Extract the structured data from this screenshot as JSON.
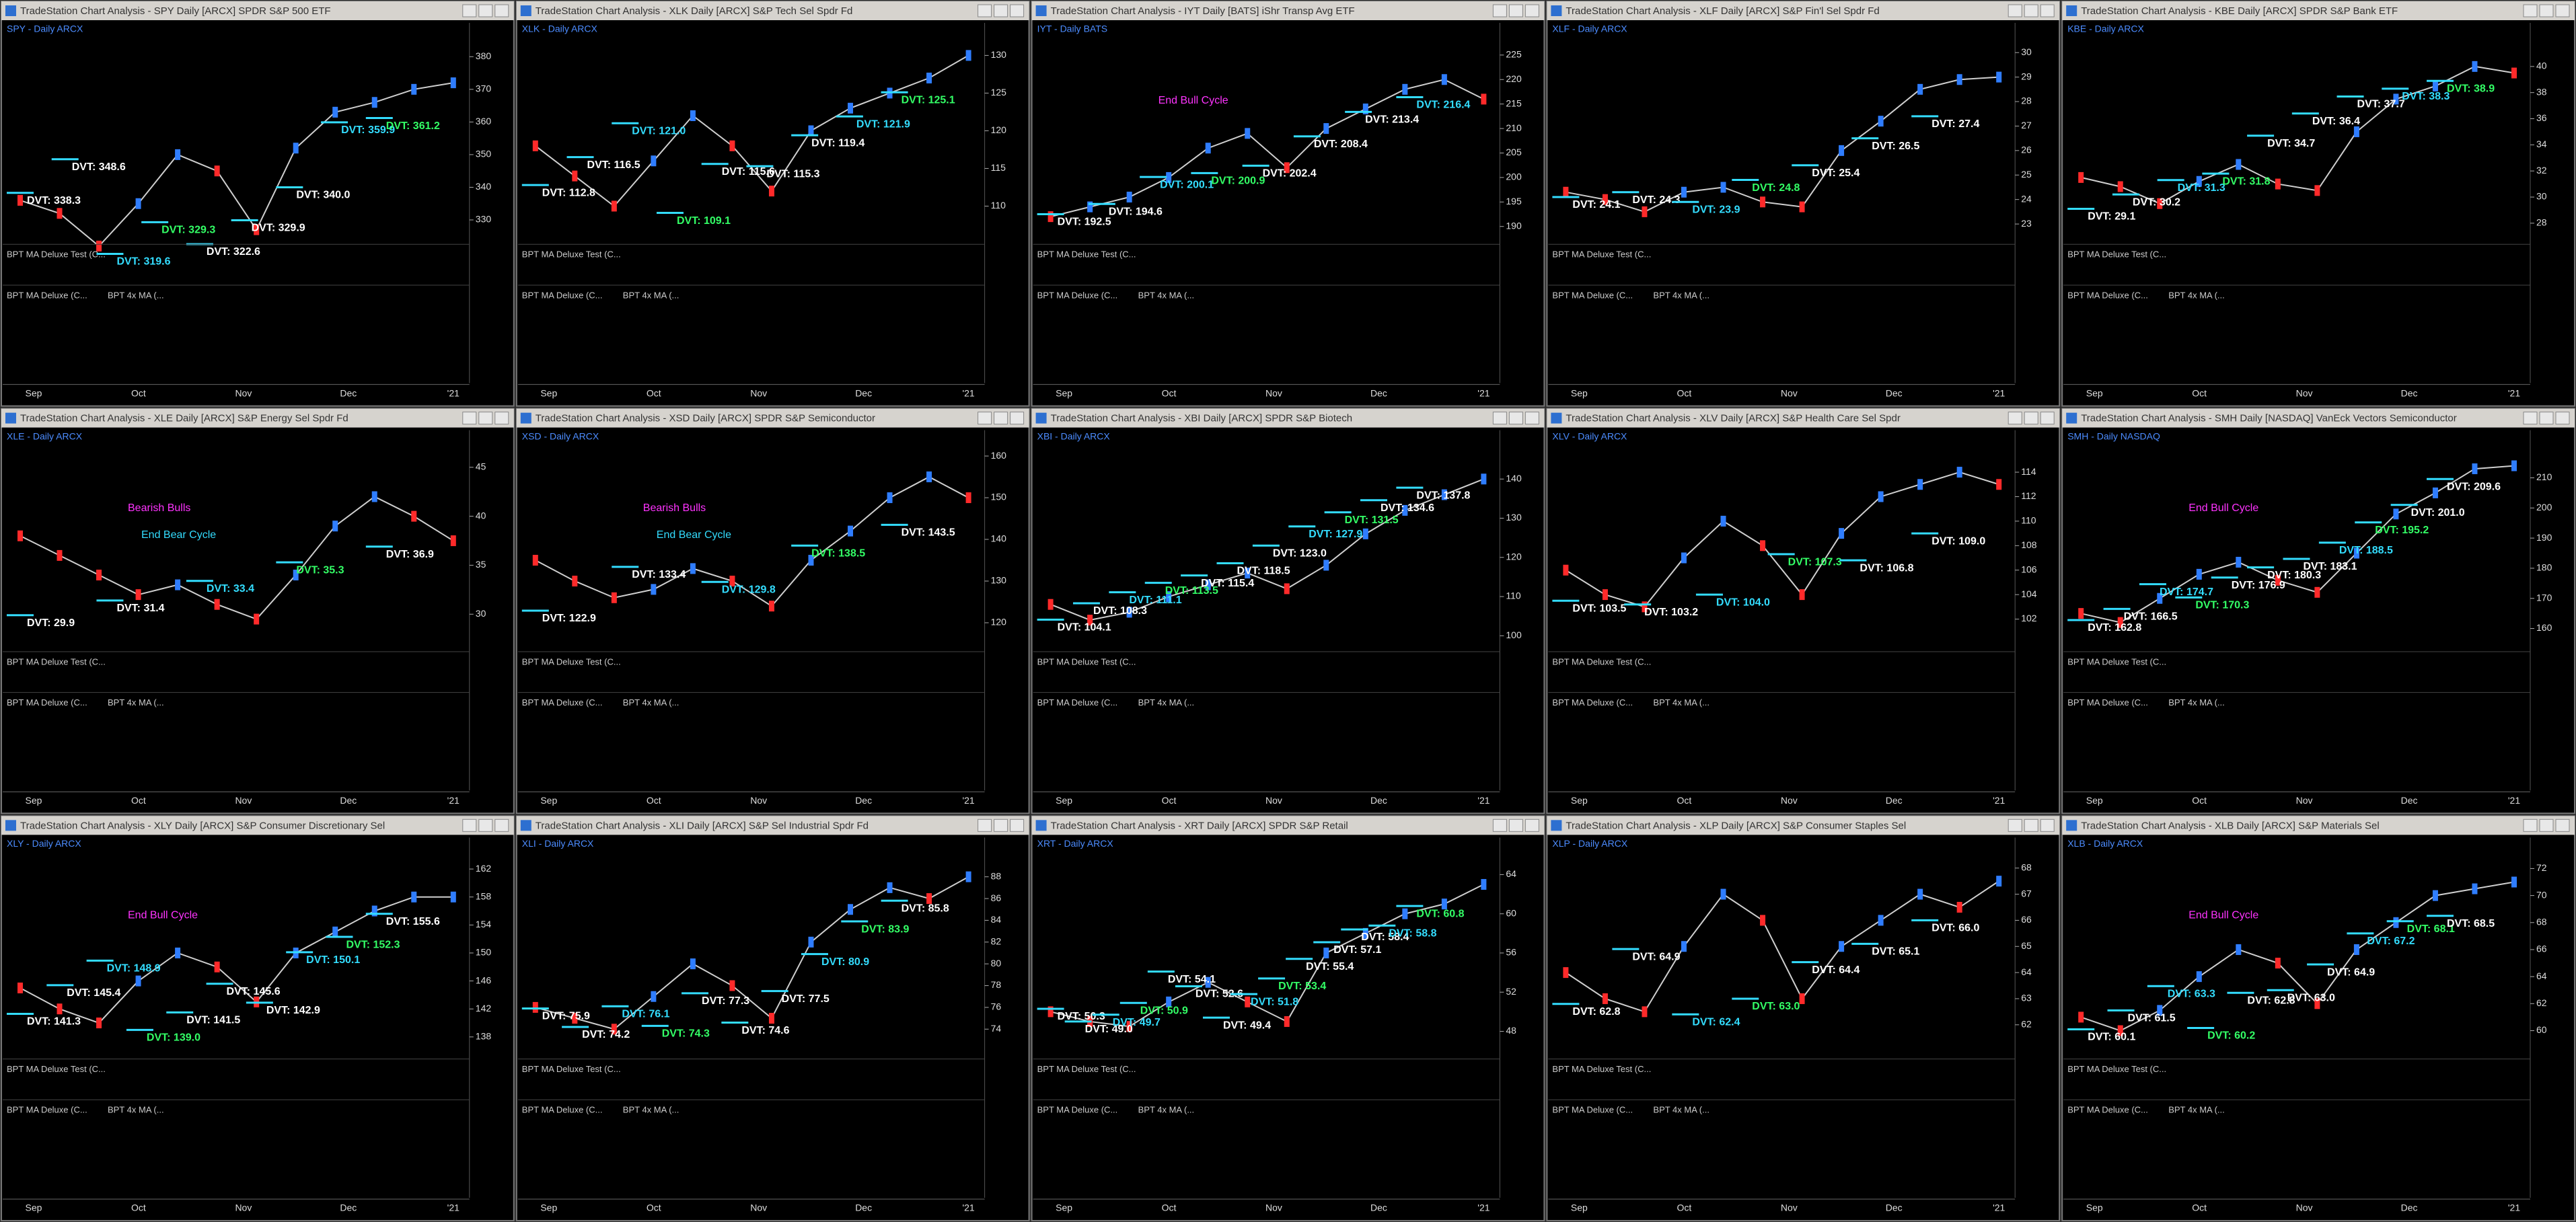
{
  "indicators": [
    "BPT MA Deluxe Test (C...",
    "BPT MA Deluxe (C...",
    "BPT 4x MA (..."
  ],
  "months": [
    "Sep",
    "Oct",
    "Nov",
    "Dec",
    "'21"
  ],
  "panels": [
    {
      "title": "TradeStation Chart Analysis - SPY Daily [ARCX] SPDR S&P 500 ETF",
      "symbol": "SPY - Daily ARCX",
      "ylim": [
        325,
        385
      ],
      "yticks": [
        330,
        340,
        350,
        360,
        370,
        380
      ],
      "prices": [
        336,
        332,
        322,
        335,
        350,
        345,
        327,
        352,
        363,
        366,
        370,
        372
      ],
      "dvt": [
        {
          "value": 338.3,
          "label": "DVT: 338.3"
        },
        {
          "value": 348.6,
          "label": "DVT: 348.6"
        },
        {
          "value": 319.6,
          "label": "DVT: 319.6"
        },
        {
          "value": 329.3,
          "label": "DVT: 329.3"
        },
        {
          "value": 322.6,
          "label": "DVT: 322.6"
        },
        {
          "value": 329.9,
          "label": "DVT: 329.9"
        },
        {
          "value": 340.0,
          "label": "DVT: 340.0"
        },
        {
          "value": 359.9,
          "label": "DVT: 359.9"
        },
        {
          "value": 361.2,
          "label": "DVT: 361.2"
        }
      ],
      "notes": []
    },
    {
      "title": "TradeStation Chart Analysis - XLK Daily [ARCX] S&P Tech Sel Spdr Fd",
      "symbol": "XLK - Daily ARCX",
      "ylim": [
        106,
        132
      ],
      "yticks": [
        110,
        115,
        120,
        125,
        130
      ],
      "prices": [
        118,
        114,
        110,
        116,
        122,
        118,
        112,
        120,
        123,
        125,
        127,
        130
      ],
      "dvt": [
        {
          "value": 112.8,
          "label": "DVT: 112.8"
        },
        {
          "value": 116.5,
          "label": "DVT: 116.5"
        },
        {
          "value": 121.0,
          "label": "DVT: 121.0"
        },
        {
          "value": 109.1,
          "label": "DVT: 109.1"
        },
        {
          "value": 115.6,
          "label": "DVT: 115.6"
        },
        {
          "value": 115.3,
          "label": "DVT: 115.3"
        },
        {
          "value": 119.4,
          "label": "DVT: 119.4"
        },
        {
          "value": 121.9,
          "label": "DVT: 121.9"
        },
        {
          "value": 125.1,
          "label": "DVT: 125.1"
        }
      ],
      "notes": []
    },
    {
      "title": "TradeStation Chart Analysis - IYT Daily [BATS] iShr Transp Avg ETF",
      "symbol": "IYT - Daily BATS",
      "ylim": [
        188,
        228
      ],
      "yticks": [
        190,
        195,
        200,
        205,
        210,
        215,
        220,
        225
      ],
      "prices": [
        192,
        194,
        196,
        200,
        206,
        209,
        202,
        210,
        214,
        218,
        220,
        216
      ],
      "dvt": [
        {
          "value": 192.5,
          "label": "DVT: 192.5"
        },
        {
          "value": 194.6,
          "label": "DVT: 194.6"
        },
        {
          "value": 200.1,
          "label": "DVT: 200.1"
        },
        {
          "value": 200.9,
          "label": "DVT: 200.9"
        },
        {
          "value": 202.4,
          "label": "DVT: 202.4"
        },
        {
          "value": 208.4,
          "label": "DVT: 208.4"
        },
        {
          "value": 213.4,
          "label": "DVT: 213.4"
        },
        {
          "value": 216.4,
          "label": "DVT: 216.4"
        }
      ],
      "notes": [
        {
          "text": "End Bull Cycle",
          "color": "#ff33ff"
        }
      ]
    },
    {
      "title": "TradeStation Chart Analysis - XLF Daily [ARCX] S&P Fin'l Sel Spdr Fd",
      "symbol": "XLF - Daily ARCX",
      "ylim": [
        22.5,
        30.5
      ],
      "yticks": [
        23,
        24,
        25,
        26,
        27,
        28,
        29,
        30
      ],
      "prices": [
        24.3,
        24.0,
        23.5,
        24.3,
        24.5,
        23.9,
        23.7,
        26.0,
        27.2,
        28.5,
        28.9,
        29.0
      ],
      "dvt": [
        {
          "value": 24.1,
          "label": "DVT: 24.1"
        },
        {
          "value": 24.3,
          "label": "DVT: 24.3"
        },
        {
          "value": 23.9,
          "label": "DVT: 23.9"
        },
        {
          "value": 24.8,
          "label": "DVT: 24.8"
        },
        {
          "value": 25.4,
          "label": "DVT: 25.4"
        },
        {
          "value": 26.5,
          "label": "DVT: 26.5"
        },
        {
          "value": 27.4,
          "label": "DVT: 27.4"
        }
      ],
      "notes": []
    },
    {
      "title": "TradeStation Chart Analysis - KBE Daily [ARCX] SPDR S&P Bank ETF",
      "symbol": "KBE - Daily ARCX",
      "ylim": [
        27,
        42
      ],
      "yticks": [
        28,
        30,
        32,
        34,
        36,
        38,
        40
      ],
      "prices": [
        31.5,
        30.8,
        29.5,
        31.2,
        32.5,
        31.0,
        30.5,
        35.0,
        37.5,
        38.5,
        40.0,
        39.5
      ],
      "dvt": [
        {
          "value": 29.1,
          "label": "DVT: 29.1"
        },
        {
          "value": 30.2,
          "label": "DVT: 30.2"
        },
        {
          "value": 31.3,
          "label": "DVT: 31.3"
        },
        {
          "value": 31.8,
          "label": "DVT: 31.8"
        },
        {
          "value": 34.7,
          "label": "DVT: 34.7"
        },
        {
          "value": 36.4,
          "label": "DVT: 36.4"
        },
        {
          "value": 37.7,
          "label": "DVT: 37.7"
        },
        {
          "value": 38.3,
          "label": "DVT: 38.3"
        },
        {
          "value": 38.9,
          "label": "DVT: 38.9"
        }
      ],
      "notes": []
    },
    {
      "title": "TradeStation Chart Analysis - XLE Daily [ARCX] S&P Energy Sel Spdr Fd",
      "symbol": "XLE - Daily ARCX",
      "ylim": [
        27,
        47
      ],
      "yticks": [
        30,
        35,
        40,
        45
      ],
      "prices": [
        38,
        36,
        34,
        32,
        33,
        31,
        29.5,
        34,
        39,
        42,
        40,
        37.5
      ],
      "dvt": [
        {
          "value": 29.9,
          "label": "DVT: 29.9"
        },
        {
          "value": 31.4,
          "label": "DVT: 31.4"
        },
        {
          "value": 33.4,
          "label": "DVT: 33.4"
        },
        {
          "value": 35.3,
          "label": "DVT: 35.3"
        },
        {
          "value": 36.9,
          "label": "DVT: 36.9"
        }
      ],
      "notes": [
        {
          "text": "Bearish Bulls",
          "color": "#ff33ff"
        },
        {
          "text": "End Bear Cycle",
          "color": "#33ddff"
        }
      ]
    },
    {
      "title": "TradeStation Chart Analysis - XSD Daily [ARCX] SPDR S&P Semiconductor",
      "symbol": "XSD - Daily ARCX",
      "ylim": [
        115,
        162
      ],
      "yticks": [
        120,
        130,
        140,
        150,
        160
      ],
      "prices": [
        135,
        130,
        126,
        128,
        133,
        130,
        124,
        135,
        142,
        150,
        155,
        150
      ],
      "dvt": [
        {
          "value": 122.9,
          "label": "DVT: 122.9"
        },
        {
          "value": 133.4,
          "label": "DVT: 133.4"
        },
        {
          "value": 129.8,
          "label": "DVT: 129.8"
        },
        {
          "value": 138.5,
          "label": "DVT: 138.5"
        },
        {
          "value": 143.5,
          "label": "DVT: 143.5"
        }
      ],
      "notes": [
        {
          "text": "Bearish Bulls",
          "color": "#ff33ff"
        },
        {
          "text": "End Bear Cycle",
          "color": "#33ddff"
        }
      ]
    },
    {
      "title": "TradeStation Chart Analysis - XBI Daily [ARCX] SPDR S&P Biotech",
      "symbol": "XBI - Daily ARCX",
      "ylim": [
        98,
        148
      ],
      "yticks": [
        100,
        110,
        120,
        130,
        140
      ],
      "prices": [
        108,
        104,
        106,
        110,
        113,
        116,
        112,
        118,
        126,
        132,
        136,
        140
      ],
      "dvt": [
        {
          "value": 104.1,
          "label": "DVT: 104.1"
        },
        {
          "value": 108.3,
          "label": "DVT: 108.3"
        },
        {
          "value": 111.1,
          "label": "DVT: 111.1"
        },
        {
          "value": 113.5,
          "label": "DVT: 113.5"
        },
        {
          "value": 115.4,
          "label": "DVT: 115.4"
        },
        {
          "value": 118.5,
          "label": "DVT: 118.5"
        },
        {
          "value": 123.0,
          "label": "DVT: 123.0"
        },
        {
          "value": 127.9,
          "label": "DVT: 127.9"
        },
        {
          "value": 131.5,
          "label": "DVT: 131.5"
        },
        {
          "value": 134.6,
          "label": "DVT: 134.6"
        },
        {
          "value": 137.8,
          "label": "DVT: 137.8"
        }
      ],
      "notes": []
    },
    {
      "title": "TradeStation Chart Analysis - XLV Daily [ARCX] S&P Health Care Sel Spdr",
      "symbol": "XLV - Daily ARCX",
      "ylim": [
        100,
        116
      ],
      "yticks": [
        102,
        104,
        106,
        108,
        110,
        112,
        114
      ],
      "prices": [
        106,
        104,
        103,
        107,
        110,
        108,
        104,
        109,
        112,
        113,
        114,
        113
      ],
      "dvt": [
        {
          "value": 103.5,
          "label": "DVT: 103.5"
        },
        {
          "value": 103.2,
          "label": "DVT: 103.2"
        },
        {
          "value": 104.0,
          "label": "DVT: 104.0"
        },
        {
          "value": 107.3,
          "label": "DVT: 107.3"
        },
        {
          "value": 106.8,
          "label": "DVT: 106.8"
        },
        {
          "value": 109.0,
          "label": "DVT: 109.0"
        }
      ],
      "notes": []
    },
    {
      "title": "TradeStation Chart Analysis - SMH Daily [NASDAQ] VanEck Vectors Semiconductor",
      "symbol": "SMH - Daily NASDAQ",
      "ylim": [
        155,
        220
      ],
      "yticks": [
        160,
        170,
        180,
        190,
        200,
        210
      ],
      "prices": [
        165,
        162,
        170,
        178,
        182,
        176,
        172,
        185,
        198,
        205,
        213,
        214
      ],
      "dvt": [
        {
          "value": 162.8,
          "label": "DVT: 162.8"
        },
        {
          "value": 166.5,
          "label": "DVT: 166.5"
        },
        {
          "value": 174.7,
          "label": "DVT: 174.7"
        },
        {
          "value": 170.3,
          "label": "DVT: 170.3"
        },
        {
          "value": 176.9,
          "label": "DVT: 176.9"
        },
        {
          "value": 180.3,
          "label": "DVT: 180.3"
        },
        {
          "value": 183.1,
          "label": "DVT: 183.1"
        },
        {
          "value": 188.5,
          "label": "DVT: 188.5"
        },
        {
          "value": 195.2,
          "label": "DVT: 195.2"
        },
        {
          "value": 201.0,
          "label": "DVT: 201.0"
        },
        {
          "value": 209.6,
          "label": "DVT: 209.6"
        }
      ],
      "notes": [
        {
          "text": "End Bull Cycle",
          "color": "#ff33ff"
        }
      ]
    },
    {
      "title": "TradeStation Chart Analysis - XLY Daily [ARCX] S&P Consumer Discretionary Sel",
      "symbol": "XLY - Daily ARCX",
      "ylim": [
        136,
        164
      ],
      "yticks": [
        138,
        142,
        146,
        150,
        154,
        158,
        162
      ],
      "prices": [
        145,
        142,
        140,
        146,
        150,
        148,
        143,
        150,
        153,
        156,
        158,
        158
      ],
      "dvt": [
        {
          "value": 141.3,
          "label": "DVT: 141.3"
        },
        {
          "value": 145.4,
          "label": "DVT: 145.4"
        },
        {
          "value": 148.9,
          "label": "DVT: 148.9"
        },
        {
          "value": 139.0,
          "label": "DVT: 139.0"
        },
        {
          "value": 141.5,
          "label": "DVT: 141.5"
        },
        {
          "value": 145.6,
          "label": "DVT: 145.6"
        },
        {
          "value": 142.9,
          "label": "DVT: 142.9"
        },
        {
          "value": 150.1,
          "label": "DVT: 150.1"
        },
        {
          "value": 152.3,
          "label": "DVT: 152.3"
        },
        {
          "value": 155.6,
          "label": "DVT: 155.6"
        }
      ],
      "notes": [
        {
          "text": "End Bull Cycle",
          "color": "#ff33ff"
        }
      ]
    },
    {
      "title": "TradeStation Chart Analysis - XLI Daily [ARCX] S&P Sel Industrial Spdr Fd",
      "symbol": "XLI - Daily ARCX",
      "ylim": [
        72,
        90
      ],
      "yticks": [
        74,
        76,
        78,
        80,
        82,
        84,
        86,
        88
      ],
      "prices": [
        76,
        75,
        74,
        77,
        80,
        78,
        75,
        82,
        85,
        87,
        86,
        88
      ],
      "dvt": [
        {
          "value": 75.9,
          "label": "DVT: 75.9"
        },
        {
          "value": 74.2,
          "label": "DVT: 74.2"
        },
        {
          "value": 76.1,
          "label": "DVT: 76.1"
        },
        {
          "value": 74.3,
          "label": "DVT: 74.3"
        },
        {
          "value": 77.3,
          "label": "DVT: 77.3"
        },
        {
          "value": 74.6,
          "label": "DVT: 74.6"
        },
        {
          "value": 77.5,
          "label": "DVT: 77.5"
        },
        {
          "value": 80.9,
          "label": "DVT: 80.9"
        },
        {
          "value": 83.9,
          "label": "DVT: 83.9"
        },
        {
          "value": 85.8,
          "label": "DVT: 85.8"
        }
      ],
      "notes": []
    },
    {
      "title": "TradeStation Chart Analysis - XRT Daily [ARCX] SPDR S&P Retail",
      "symbol": "XRT - Daily ARCX",
      "ylim": [
        46,
        66
      ],
      "yticks": [
        48,
        52,
        56,
        60,
        64
      ],
      "prices": [
        50,
        49,
        48.5,
        51,
        53,
        51,
        49,
        56,
        58,
        60,
        61,
        63
      ],
      "dvt": [
        {
          "value": 50.3,
          "label": "DVT: 50.3"
        },
        {
          "value": 49.0,
          "label": "DVT: 49.0"
        },
        {
          "value": 49.7,
          "label": "DVT: 49.7"
        },
        {
          "value": 50.9,
          "label": "DVT: 50.9"
        },
        {
          "value": 54.1,
          "label": "DVT: 54.1"
        },
        {
          "value": 52.6,
          "label": "DVT: 52.6"
        },
        {
          "value": 49.4,
          "label": "DVT: 49.4"
        },
        {
          "value": 51.8,
          "label": "DVT: 51.8"
        },
        {
          "value": 53.4,
          "label": "DVT: 53.4"
        },
        {
          "value": 55.4,
          "label": "DVT: 55.4"
        },
        {
          "value": 57.1,
          "label": "DVT: 57.1"
        },
        {
          "value": 58.4,
          "label": "DVT: 58.4"
        },
        {
          "value": 58.8,
          "label": "DVT: 58.8"
        },
        {
          "value": 60.8,
          "label": "DVT: 60.8"
        }
      ],
      "notes": []
    },
    {
      "title": "TradeStation Chart Analysis - XLP Daily [ARCX] S&P Consumer Staples Sel",
      "symbol": "XLP - Daily ARCX",
      "ylim": [
        61,
        68.5
      ],
      "yticks": [
        62,
        63,
        64,
        65,
        66,
        67,
        68
      ],
      "prices": [
        64,
        63,
        62.5,
        65,
        67,
        66,
        63,
        65,
        66,
        67,
        66.5,
        67.5
      ],
      "dvt": [
        {
          "value": 62.8,
          "label": "DVT: 62.8"
        },
        {
          "value": 64.9,
          "label": "DVT: 64.9"
        },
        {
          "value": 62.4,
          "label": "DVT: 62.4"
        },
        {
          "value": 63.0,
          "label": "DVT: 63.0"
        },
        {
          "value": 64.4,
          "label": "DVT: 64.4"
        },
        {
          "value": 65.1,
          "label": "DVT: 65.1"
        },
        {
          "value": 66.0,
          "label": "DVT: 66.0"
        }
      ],
      "notes": []
    },
    {
      "title": "TradeStation Chart Analysis - XLB Daily [ARCX] S&P Materials Sel",
      "symbol": "XLB - Daily ARCX",
      "ylim": [
        58.5,
        73
      ],
      "yticks": [
        60,
        62,
        64,
        66,
        68,
        70,
        72
      ],
      "prices": [
        61,
        60,
        61.5,
        64,
        66,
        65,
        62,
        66,
        68,
        70,
        70.5,
        71
      ],
      "dvt": [
        {
          "value": 60.1,
          "label": "DVT: 60.1"
        },
        {
          "value": 61.5,
          "label": "DVT: 61.5"
        },
        {
          "value": 63.3,
          "label": "DVT: 63.3"
        },
        {
          "value": 60.2,
          "label": "DVT: 60.2"
        },
        {
          "value": 62.8,
          "label": "DVT: 62.8"
        },
        {
          "value": 63.0,
          "label": "DVT: 63.0"
        },
        {
          "value": 64.9,
          "label": "DVT: 64.9"
        },
        {
          "value": 67.2,
          "label": "DVT: 67.2"
        },
        {
          "value": 68.1,
          "label": "DVT: 68.1"
        },
        {
          "value": 68.5,
          "label": "DVT: 68.5"
        }
      ],
      "notes": [
        {
          "text": "End Bull Cycle",
          "color": "#ff33ff"
        }
      ]
    }
  ]
}
